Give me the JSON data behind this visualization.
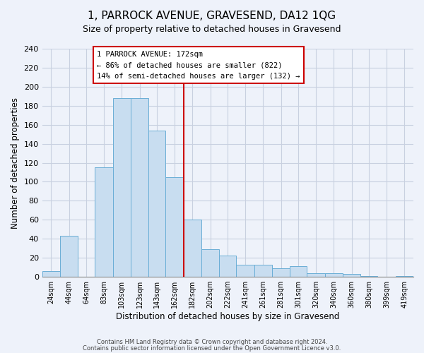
{
  "title": "1, PARROCK AVENUE, GRAVESEND, DA12 1QG",
  "subtitle": "Size of property relative to detached houses in Gravesend",
  "xlabel": "Distribution of detached houses by size in Gravesend",
  "ylabel": "Number of detached properties",
  "bar_left_edges": [
    14,
    34,
    54,
    73,
    93,
    113,
    133,
    152,
    172,
    192,
    212,
    231,
    251,
    271,
    291,
    310,
    330,
    350,
    370,
    389,
    409
  ],
  "bar_right_edges": [
    34,
    54,
    73,
    93,
    113,
    133,
    152,
    172,
    192,
    212,
    231,
    251,
    271,
    291,
    310,
    330,
    350,
    370,
    389,
    409,
    429
  ],
  "bar_labels": [
    "24sqm",
    "44sqm",
    "64sqm",
    "83sqm",
    "103sqm",
    "123sqm",
    "143sqm",
    "162sqm",
    "182sqm",
    "202sqm",
    "222sqm",
    "241sqm",
    "261sqm",
    "281sqm",
    "301sqm",
    "320sqm",
    "340sqm",
    "360sqm",
    "380sqm",
    "399sqm",
    "419sqm"
  ],
  "bar_values": [
    6,
    43,
    0,
    115,
    188,
    188,
    154,
    105,
    60,
    29,
    22,
    13,
    13,
    9,
    11,
    4,
    4,
    3,
    1,
    0,
    1
  ],
  "bar_color": "#c8ddf0",
  "bar_edge_color": "#6aaed6",
  "vline_x": 172,
  "annotation_box_text": "1 PARROCK AVENUE: 172sqm\n← 86% of detached houses are smaller (822)\n14% of semi-detached houses are larger (132) →",
  "vline_color": "#cc0000",
  "box_edge_color": "#cc0000",
  "ylim": [
    0,
    240
  ],
  "yticks": [
    0,
    20,
    40,
    60,
    80,
    100,
    120,
    140,
    160,
    180,
    200,
    220,
    240
  ],
  "xlim": [
    14,
    429
  ],
  "footer_line1": "Contains HM Land Registry data © Crown copyright and database right 2024.",
  "footer_line2": "Contains public sector information licensed under the Open Government Licence v3.0.",
  "bg_color": "#eef2fa",
  "grid_color": "#c8d0e0"
}
